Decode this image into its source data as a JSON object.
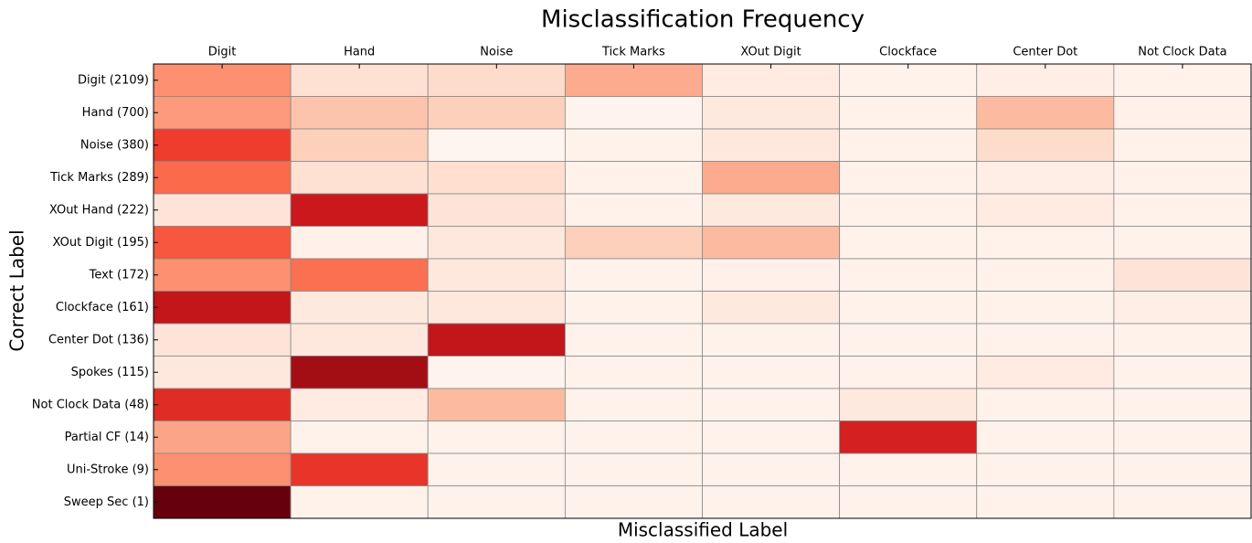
{
  "chart_data": {
    "type": "heatmap",
    "title": "Misclassification Frequency",
    "x_label": "Misclassified Label",
    "y_label": "Correct Label",
    "colormap": "Reds",
    "x_categories": [
      "Digit",
      "Hand",
      "Noise",
      "Tick Marks",
      "XOut Digit",
      "Clockface",
      "Center Dot",
      "Not Clock Data"
    ],
    "y_categories": [
      "Digit (2109)",
      "Hand (700)",
      "Noise (380)",
      "Tick Marks (289)",
      "XOut Hand (222)",
      "XOut Digit (195)",
      "Text (172)",
      "Clockface (161)",
      "Center Dot (136)",
      "Spokes (115)",
      "Not Clock Data (48)",
      "Partial CF (14)",
      "Uni-Stroke (9)",
      "Sweep Sec (1)"
    ],
    "values": [
      [
        0.38,
        0.12,
        0.14,
        0.3,
        0.06,
        0.02,
        0.04,
        0.02
      ],
      [
        0.35,
        0.22,
        0.18,
        0.01,
        0.07,
        0.02,
        0.25,
        0.03
      ],
      [
        0.62,
        0.18,
        0.0,
        0.02,
        0.08,
        0.02,
        0.14,
        0.02
      ],
      [
        0.5,
        0.12,
        0.13,
        0.02,
        0.3,
        0.02,
        0.04,
        0.02
      ],
      [
        0.1,
        0.75,
        0.1,
        0.02,
        0.07,
        0.02,
        0.06,
        0.02
      ],
      [
        0.55,
        0.03,
        0.08,
        0.18,
        0.25,
        0.02,
        0.02,
        0.02
      ],
      [
        0.38,
        0.48,
        0.08,
        0.02,
        0.03,
        0.02,
        0.02,
        0.1
      ],
      [
        0.78,
        0.07,
        0.08,
        0.02,
        0.07,
        0.02,
        0.02,
        0.04
      ],
      [
        0.1,
        0.08,
        0.78,
        0.02,
        0.02,
        0.02,
        0.02,
        0.02
      ],
      [
        0.08,
        0.88,
        0.01,
        0.02,
        0.02,
        0.02,
        0.06,
        0.02
      ],
      [
        0.68,
        0.06,
        0.25,
        0.02,
        0.02,
        0.07,
        0.02,
        0.02
      ],
      [
        0.32,
        0.02,
        0.02,
        0.02,
        0.02,
        0.72,
        0.02,
        0.02
      ],
      [
        0.38,
        0.65,
        0.02,
        0.02,
        0.02,
        0.02,
        0.02,
        0.02
      ],
      [
        1.0,
        0.02,
        0.02,
        0.02,
        0.02,
        0.02,
        0.02,
        0.02
      ]
    ]
  }
}
